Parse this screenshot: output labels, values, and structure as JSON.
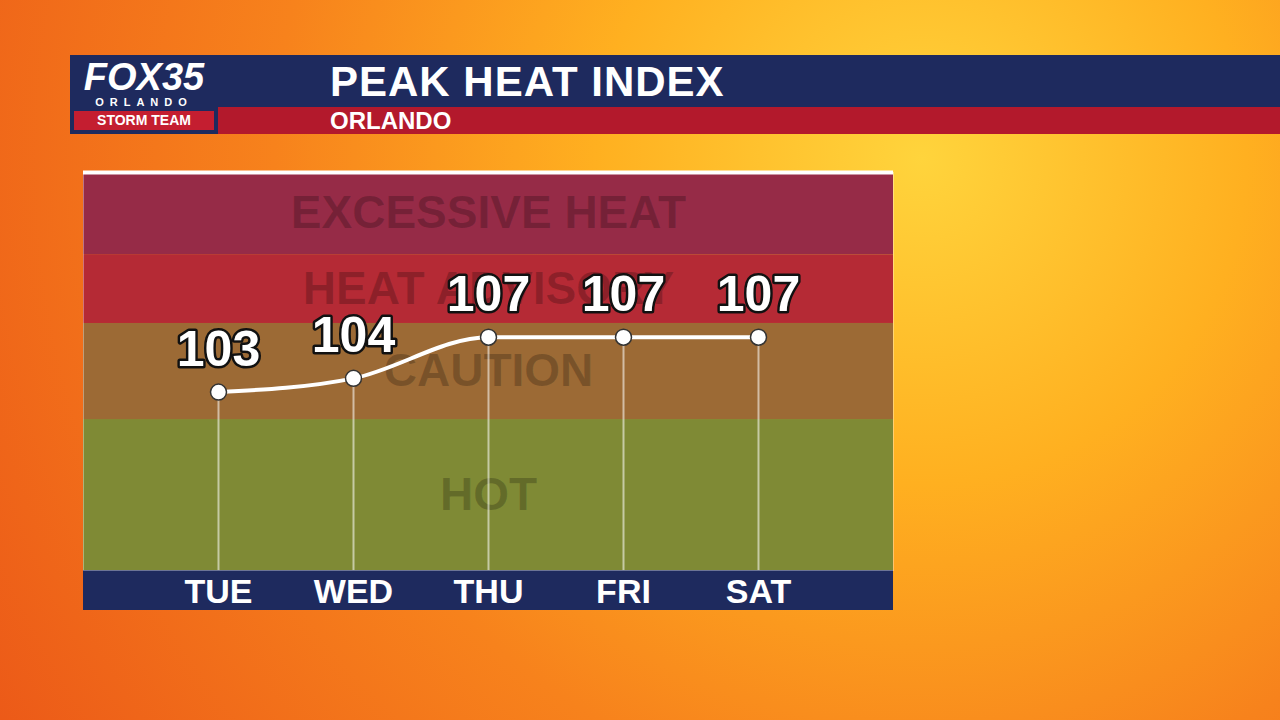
{
  "chart_data": {
    "type": "line",
    "title": "PEAK HEAT INDEX",
    "subtitle": "ORLANDO",
    "logo": "FOX35",
    "logo_subtitle": "ORLANDO",
    "logo_tag": "STORM TEAM",
    "categories": [
      "TUE",
      "WED",
      "THU",
      "FRI",
      "SAT"
    ],
    "values": [
      103,
      104,
      107,
      107,
      107
    ],
    "color": "#ffffff",
    "marker": "circle",
    "data_labels": true,
    "tick_labels": "x",
    "ylim": [
      90,
      119
    ],
    "yticks": [],
    "bands": [
      {
        "label": "HOT",
        "from": 90,
        "to": 101,
        "color": "#7f8a35"
      },
      {
        "label": "CAUTION",
        "from": 101,
        "to": 108,
        "color": "#9c6a35"
      },
      {
        "label": "HEAT ADVISORY",
        "from": 108,
        "to": 113,
        "color": "#b52a35"
      },
      {
        "label": "EXCESSIVE HEAT",
        "from": 113,
        "to": 119,
        "color": "#962b47"
      }
    ]
  }
}
